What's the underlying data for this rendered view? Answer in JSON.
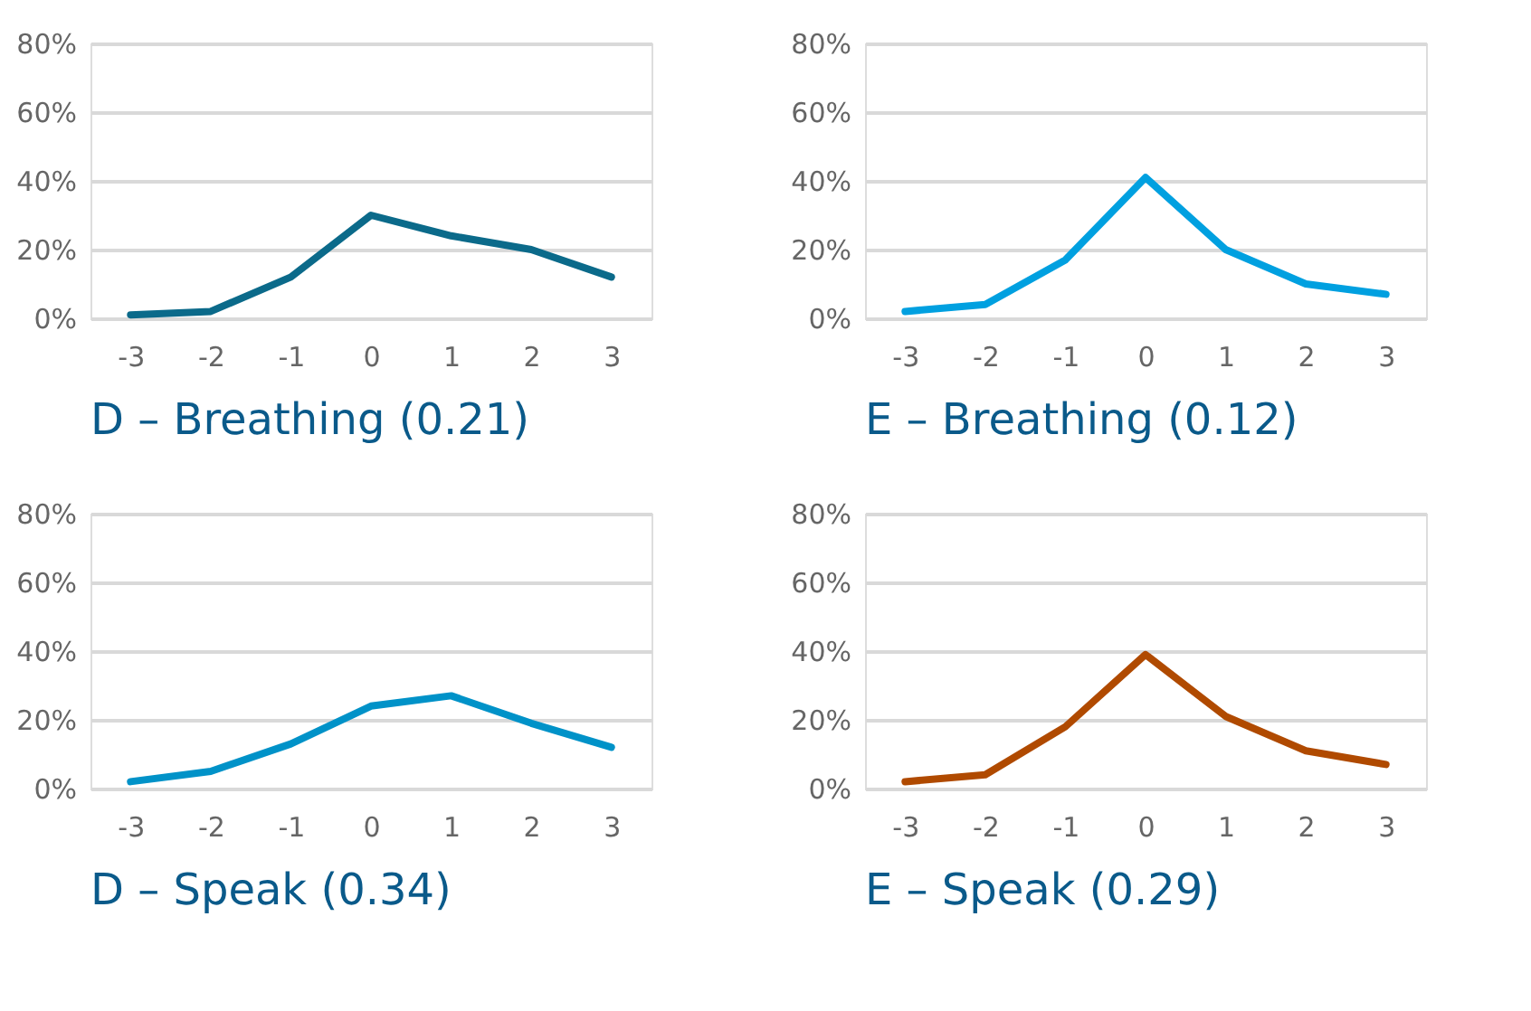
{
  "chart_data": [
    {
      "type": "line",
      "title": "D – Breathing (0.21)",
      "categories": [
        "-3",
        "-2",
        "-1",
        "0",
        "1",
        "2",
        "3"
      ],
      "series": [
        {
          "color": "#0b6a8a",
          "values": [
            1,
            2,
            12,
            30,
            24,
            20,
            12
          ]
        }
      ],
      "ylim": [
        0,
        80
      ],
      "yticks": [
        {
          "value": 0,
          "label": "0%"
        },
        {
          "value": 20,
          "label": "20%"
        },
        {
          "value": 40,
          "label": "40%"
        },
        {
          "value": 60,
          "label": "60%"
        },
        {
          "value": 80,
          "label": "80%"
        }
      ],
      "grid": "y"
    },
    {
      "type": "line",
      "title": "E – Breathing (0.12)",
      "categories": [
        "-3",
        "-2",
        "-1",
        "0",
        "1",
        "2",
        "3"
      ],
      "series": [
        {
          "color": "#00a0e0",
          "values": [
            2,
            4,
            17,
            41,
            20,
            10,
            7
          ]
        }
      ],
      "ylim": [
        0,
        80
      ],
      "yticks": [
        {
          "value": 0,
          "label": "0%"
        },
        {
          "value": 20,
          "label": "20%"
        },
        {
          "value": 40,
          "label": "40%"
        },
        {
          "value": 60,
          "label": "60%"
        },
        {
          "value": 80,
          "label": "80%"
        }
      ],
      "grid": "y"
    },
    {
      "type": "line",
      "title": "D – Speak (0.34)",
      "categories": [
        "-3",
        "-2",
        "-1",
        "0",
        "1",
        "2",
        "3"
      ],
      "series": [
        {
          "color": "#0092c8",
          "values": [
            2,
            5,
            13,
            24,
            27,
            19,
            12
          ]
        }
      ],
      "ylim": [
        0,
        80
      ],
      "yticks": [
        {
          "value": 0,
          "label": "0%"
        },
        {
          "value": 20,
          "label": "20%"
        },
        {
          "value": 40,
          "label": "40%"
        },
        {
          "value": 60,
          "label": "60%"
        },
        {
          "value": 80,
          "label": "80%"
        }
      ],
      "grid": "y"
    },
    {
      "type": "line",
      "title": "E – Speak (0.29)",
      "categories": [
        "-3",
        "-2",
        "-1",
        "0",
        "1",
        "2",
        "3"
      ],
      "series": [
        {
          "color": "#b04a00",
          "values": [
            2,
            4,
            18,
            39,
            21,
            11,
            7
          ]
        }
      ],
      "ylim": [
        0,
        80
      ],
      "yticks": [
        {
          "value": 0,
          "label": "0%"
        },
        {
          "value": 20,
          "label": "20%"
        },
        {
          "value": 40,
          "label": "40%"
        },
        {
          "value": 60,
          "label": "60%"
        },
        {
          "value": 80,
          "label": "80%"
        }
      ],
      "grid": "y"
    }
  ]
}
